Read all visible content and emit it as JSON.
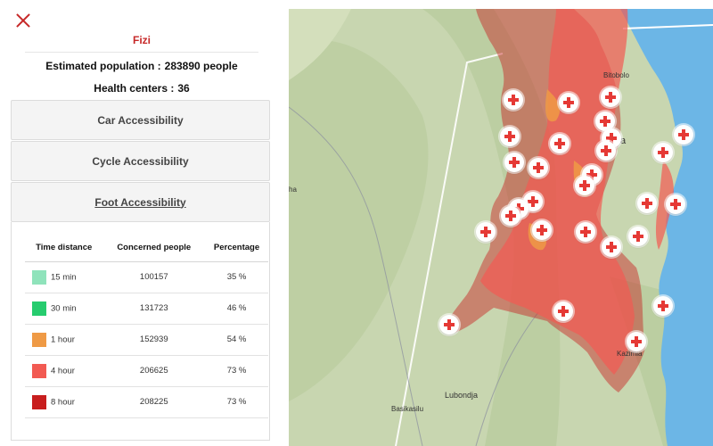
{
  "panel": {
    "zone_name": "Fizi",
    "population_label": "Estimated population :",
    "population_value": "283890 people",
    "health_centers_label": "Health centers :",
    "health_centers_value": "36"
  },
  "accordion": {
    "car": "Car Accessibility",
    "cycle": "Cycle Accessibility",
    "foot": "Foot Accessibility"
  },
  "table": {
    "headers": [
      "Time distance",
      "Concerned people",
      "Percentage"
    ],
    "rows": [
      {
        "time": "15 min",
        "people": "100157",
        "percent": "35 %",
        "color": "#8fe3bb"
      },
      {
        "time": "30 min",
        "people": "131723",
        "percent": "46 %",
        "color": "#26cc6e"
      },
      {
        "time": "1 hour",
        "people": "152939",
        "percent": "54 %",
        "color": "#ef9a45"
      },
      {
        "time": "4 hour",
        "people": "206625",
        "percent": "73 %",
        "color": "#f25a52"
      },
      {
        "time": "8 hour",
        "people": "208225",
        "percent": "73 %",
        "color": "#c81e1e"
      }
    ]
  },
  "map": {
    "places": [
      "Bitobolo",
      "a",
      "ha",
      "Lubondja",
      "Basikasilu",
      "Kazimia"
    ],
    "colors": {
      "water": "#6cb6e6",
      "land": "#c8d6b0",
      "hill": "#a9bf92",
      "isochrone_8h": "#c81e1e",
      "isochrone_4h": "#f25a52",
      "isochrone_1h": "#ef9a45"
    },
    "marker_icon": "red-cross-icon"
  }
}
